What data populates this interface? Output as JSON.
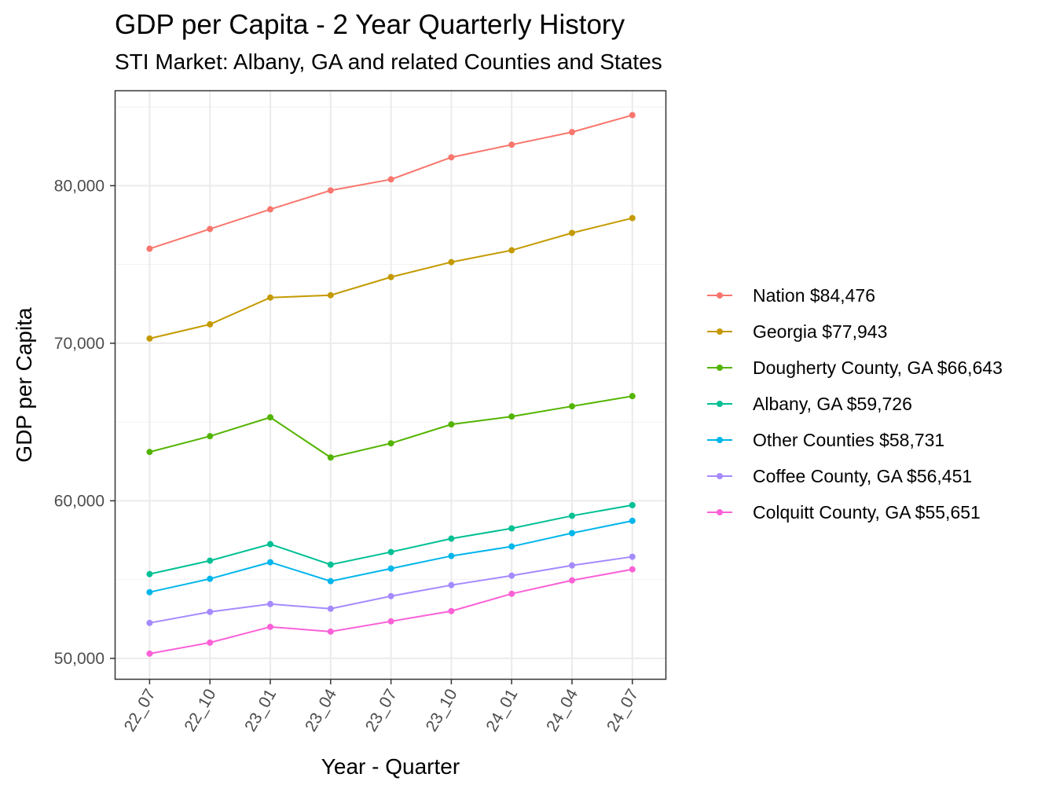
{
  "chart_data": {
    "type": "line",
    "title": "GDP per Capita - 2 Year Quarterly History",
    "subtitle": "STI Market: Albany, GA and related Counties and States",
    "xlabel": "Year - Quarter",
    "ylabel": "GDP per Capita",
    "categories": [
      "22_07",
      "22_10",
      "23_01",
      "23_04",
      "23_07",
      "23_10",
      "24_01",
      "24_04",
      "24_07"
    ],
    "ylim": [
      48700,
      86000
    ],
    "y_ticks": [
      50000,
      60000,
      70000,
      80000
    ],
    "y_tick_labels": [
      "50,000",
      "60,000",
      "70,000",
      "80,000"
    ],
    "grid": true,
    "legend_position": "right",
    "series": [
      {
        "name": "Nation $84,476",
        "color": "#F8766D",
        "values": [
          76000,
          77250,
          78500,
          79700,
          80400,
          81800,
          82600,
          83400,
          84476
        ]
      },
      {
        "name": "Georgia $77,943",
        "color": "#C49A00",
        "values": [
          70300,
          71200,
          72900,
          73050,
          74200,
          75150,
          75900,
          77000,
          77943
        ]
      },
      {
        "name": "Dougherty County, GA $66,643",
        "color": "#53B400",
        "values": [
          63100,
          64100,
          65300,
          62750,
          63650,
          64850,
          65350,
          66000,
          66643
        ]
      },
      {
        "name": "Albany, GA $59,726",
        "color": "#00C094",
        "values": [
          55350,
          56200,
          57250,
          55950,
          56750,
          57600,
          58250,
          59050,
          59726
        ]
      },
      {
        "name": "Other Counties $58,731",
        "color": "#00B6EB",
        "values": [
          54200,
          55050,
          56100,
          54900,
          55700,
          56500,
          57100,
          57950,
          58731
        ]
      },
      {
        "name": "Coffee County, GA $56,451",
        "color": "#A58AFF",
        "values": [
          52250,
          52950,
          53450,
          53150,
          53950,
          54650,
          55250,
          55900,
          56451
        ]
      },
      {
        "name": "Colquitt County, GA $55,651",
        "color": "#FB61D7",
        "values": [
          50300,
          51000,
          52000,
          51700,
          52350,
          53000,
          54100,
          54950,
          55651
        ]
      }
    ]
  }
}
